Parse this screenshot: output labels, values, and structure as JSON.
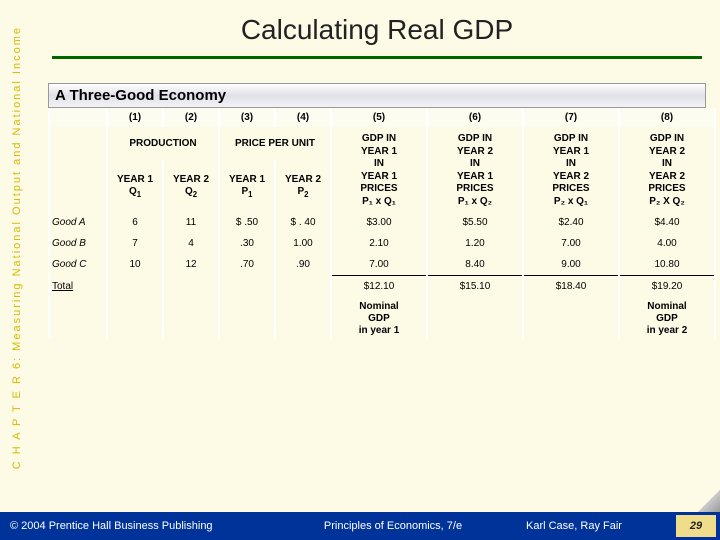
{
  "title": "Calculating Real GDP",
  "sidebar_text": "C H A P T E R  6:  Measuring National Output and National Income",
  "section_title": "A Three-Good Economy",
  "col_nums": [
    "(1)",
    "(2)",
    "(3)",
    "(4)",
    "(5)",
    "(6)",
    "(7)",
    "(8)"
  ],
  "group_headers": {
    "production": "PRODUCTION",
    "price": "PRICE PER UNIT",
    "qty_y1": "YEAR 1\nQ",
    "qty_y2": "YEAR 2\nQ",
    "prc_y1": "YEAR 1\nP",
    "prc_y2": "YEAR 2\nP",
    "gdp5": "GDP IN\nYEAR 1\nIN\nYEAR 1\nPRICES",
    "gdp6": "GDP IN\nYEAR 2\nIN\nYEAR 1\nPRICES",
    "gdp7": "GDP IN\nYEAR 1\nIN\nYEAR 2\nPRICES",
    "gdp8": "GDP IN\nYEAR 2\nIN\nYEAR 2\nPRICES",
    "f5": "P₁ x Q₁",
    "f6": "P₁ x Q₂",
    "f7": "P₂ x Q₁",
    "f8": "P₂ X Q₂"
  },
  "rows": [
    {
      "name": "Good A",
      "q1": "6",
      "q2": "11",
      "p1": "$ .50",
      "p2": "$ . 40",
      "g5": "$3.00",
      "g6": "$5.50",
      "g7": "$2.40",
      "g8": "$4.40"
    },
    {
      "name": "Good B",
      "q1": "7",
      "q2": "4",
      "p1": ".30",
      "p2": "1.00",
      "g5": "2.10",
      "g6": "1.20",
      "g7": "7.00",
      "g8": "4.00"
    },
    {
      "name": "Good C",
      "q1": "10",
      "q2": "12",
      "p1": ".70",
      "p2": ".90",
      "g5": "7.00",
      "g6": "8.40",
      "g7": "9.00",
      "g8": "10.80"
    }
  ],
  "total_label": "Total",
  "totals": {
    "g5": "$12.10",
    "g6": "$15.10",
    "g7": "$18.40",
    "g8": "$19.20"
  },
  "notes": {
    "n5": "Nominal\nGDP\nin year 1",
    "n8": "Nominal\nGDP\nin year 2"
  },
  "footer": {
    "copyright": "© 2004 Prentice Hall Business Publishing",
    "center": "Principles of Economics, 7/e",
    "authors": "Karl Case, Ray Fair",
    "page": "29"
  },
  "colors": {
    "bg": "#fdfae6",
    "rule": "#060",
    "footer_bg": "#003399",
    "pagebox_bg": "#f0dd8c",
    "sidebar_text": "#d4bb00"
  }
}
